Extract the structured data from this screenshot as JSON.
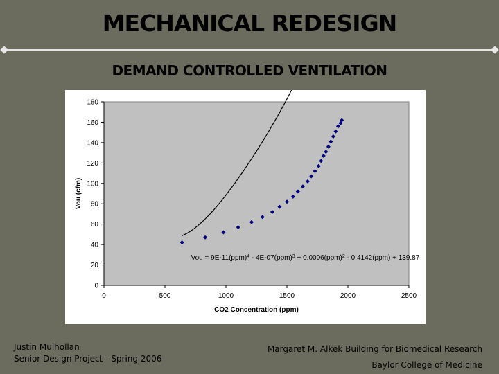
{
  "slide": {
    "title": "MECHANICAL REDESIGN",
    "subtitle": "DEMAND CONTROLLED VENTILATION",
    "footer_left": [
      "Justin Mulhollan",
      "Senior Design Project - Spring 2006"
    ],
    "footer_right": [
      "Margaret M. Alkek Building for Biomedical Research",
      "Baylor College of Medicine"
    ]
  },
  "colors": {
    "background": "#6b6b5e",
    "plot_area": "#c0c0c0",
    "series": "#000080",
    "rule": "#e6e6e6"
  },
  "chart_data": {
    "type": "scatter",
    "title": "",
    "xlabel": "CO2 Concentration (ppm)",
    "ylabel": "Vou (cfm)",
    "xlim": [
      0,
      2500
    ],
    "ylim": [
      0,
      180
    ],
    "xticks": [
      0,
      500,
      1000,
      1500,
      2000,
      2500
    ],
    "yticks": [
      0,
      20,
      40,
      60,
      80,
      100,
      120,
      140,
      160,
      180
    ],
    "grid": false,
    "trendline": "polynomial-4",
    "annotation": {
      "parts": [
        {
          "text": "Vou = 9E-11(ppm)",
          "sup": false
        },
        {
          "text": "4",
          "sup": true
        },
        {
          "text": " - 4E-07(ppm)",
          "sup": false
        },
        {
          "text": "3",
          "sup": true
        },
        {
          "text": " + 0.0006(ppm)",
          "sup": false
        },
        {
          "text": "2",
          "sup": true
        },
        {
          "text": " - 0.4142(ppm) + 139.87",
          "sup": false
        }
      ],
      "x": 1650,
      "y": 25
    },
    "series": [
      {
        "x": [
          640,
          830,
          980,
          1100,
          1210,
          1300,
          1380,
          1440,
          1500,
          1550,
          1590,
          1630,
          1670,
          1700,
          1730,
          1760,
          1780,
          1800,
          1820,
          1840,
          1860,
          1880,
          1900,
          1920,
          1940,
          1950
        ],
        "y": [
          42,
          47,
          52,
          57,
          62,
          67,
          72,
          77,
          82,
          87,
          92,
          97,
          102,
          107,
          112,
          117,
          122,
          127,
          131,
          136,
          141,
          146,
          151,
          156,
          159,
          162
        ]
      }
    ]
  }
}
